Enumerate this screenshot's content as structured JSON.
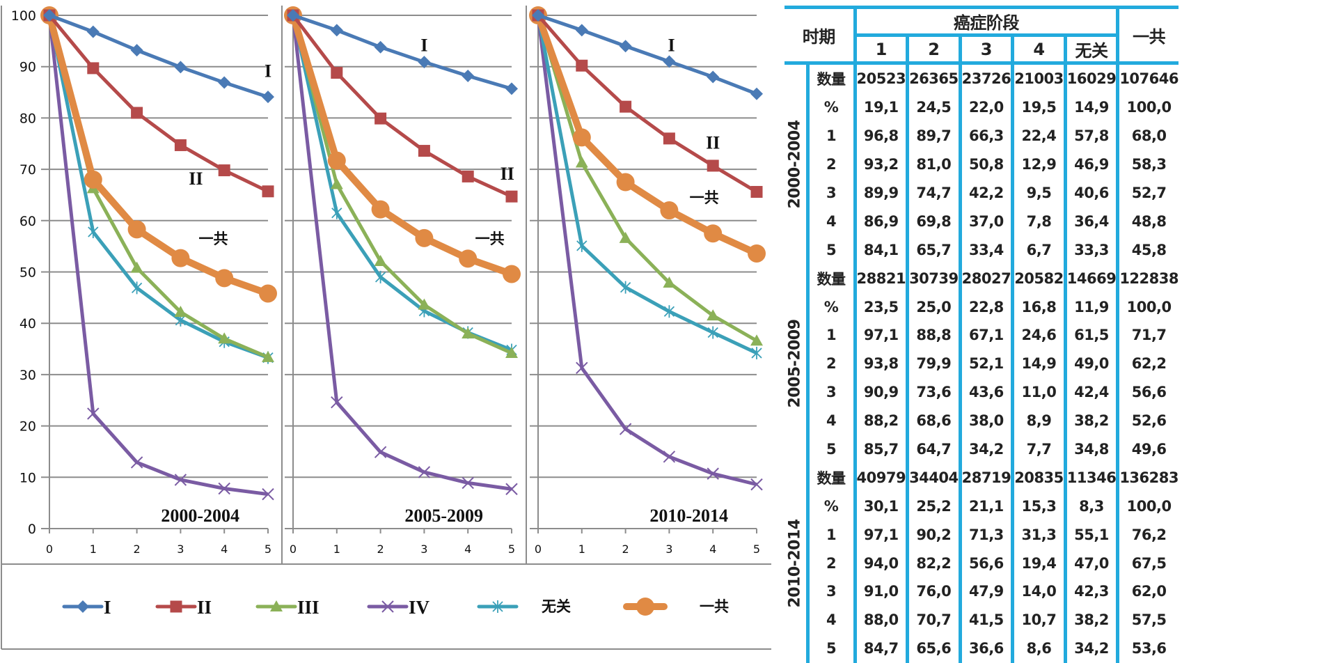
{
  "chart_data": {
    "type": "line",
    "x": [
      0,
      1,
      2,
      3,
      4,
      5
    ],
    "ylim": [
      0,
      100
    ],
    "yticks": [
      0,
      10,
      20,
      30,
      40,
      50,
      60,
      70,
      80,
      90,
      100
    ],
    "xticks": [
      0,
      1,
      2,
      3,
      4,
      5
    ],
    "grid": true,
    "legend_placement": "bottom",
    "legend": [
      {
        "label": "I",
        "color": "#4a7ab5",
        "marker": "diamond"
      },
      {
        "label": "II",
        "color": "#b54a4a",
        "marker": "square"
      },
      {
        "label": "III",
        "color": "#8bb158",
        "marker": "triangle"
      },
      {
        "label": "IV",
        "color": "#7a5ba3",
        "marker": "x"
      },
      {
        "label": "无关",
        "color": "#3ba0b8",
        "marker": "asterisk"
      },
      {
        "label": "一共",
        "color": "#e08a44",
        "marker": "circle"
      }
    ],
    "panels": [
      {
        "title": "2000-2004",
        "series": [
          {
            "name": "I",
            "values": [
              100,
              96.8,
              93.2,
              89.9,
              86.9,
              84.1
            ]
          },
          {
            "name": "II",
            "values": [
              100,
              89.7,
              81.0,
              74.7,
              69.8,
              65.7
            ]
          },
          {
            "name": "III",
            "values": [
              100,
              66.3,
              50.8,
              42.2,
              37.0,
              33.4
            ]
          },
          {
            "name": "IV",
            "values": [
              100,
              22.4,
              12.9,
              9.5,
              7.8,
              6.7
            ]
          },
          {
            "name": "无关",
            "values": [
              100,
              57.8,
              46.9,
              40.6,
              36.4,
              33.3
            ]
          },
          {
            "name": "一共",
            "values": [
              100,
              68.0,
              58.3,
              52.7,
              48.8,
              45.8
            ]
          }
        ],
        "annotations": [
          {
            "text": "I",
            "x": 5,
            "y": 88
          },
          {
            "text": "II",
            "x": 3.35,
            "y": 67
          },
          {
            "text": "一共",
            "x": 3.75,
            "y": 55.5
          }
        ]
      },
      {
        "title": "2005-2009",
        "series": [
          {
            "name": "I",
            "values": [
              100,
              97.1,
              93.8,
              90.9,
              88.2,
              85.7
            ]
          },
          {
            "name": "II",
            "values": [
              100,
              88.8,
              79.9,
              73.6,
              68.6,
              64.7
            ]
          },
          {
            "name": "III",
            "values": [
              100,
              67.1,
              52.1,
              43.6,
              38.0,
              34.2
            ]
          },
          {
            "name": "IV",
            "values": [
              100,
              24.6,
              14.9,
              11.0,
              8.9,
              7.7
            ]
          },
          {
            "name": "无关",
            "values": [
              100,
              61.5,
              49.0,
              42.4,
              38.2,
              34.8
            ]
          },
          {
            "name": "一共",
            "values": [
              100,
              71.7,
              62.2,
              56.6,
              52.6,
              49.6
            ]
          }
        ],
        "annotations": [
          {
            "text": "I",
            "x": 3,
            "y": 93
          },
          {
            "text": "II",
            "x": 4.9,
            "y": 68
          },
          {
            "text": "一共",
            "x": 4.5,
            "y": 55.5
          }
        ]
      },
      {
        "title": "2010-2014",
        "series": [
          {
            "name": "I",
            "values": [
              100,
              97.1,
              94.0,
              91.0,
              88.0,
              84.7
            ]
          },
          {
            "name": "II",
            "values": [
              100,
              90.2,
              82.2,
              76.0,
              70.7,
              65.6
            ]
          },
          {
            "name": "III",
            "values": [
              100,
              71.3,
              56.6,
              47.9,
              41.5,
              36.6
            ]
          },
          {
            "name": "IV",
            "values": [
              100,
              31.3,
              19.4,
              14.0,
              10.7,
              8.6
            ]
          },
          {
            "name": "无关",
            "values": [
              100,
              55.1,
              47.0,
              42.3,
              38.2,
              34.2
            ]
          },
          {
            "name": "一共",
            "values": [
              100,
              76.2,
              67.5,
              62.0,
              57.5,
              53.6
            ]
          }
        ],
        "annotations": [
          {
            "text": "I",
            "x": 3.05,
            "y": 93
          },
          {
            "text": "II",
            "x": 4,
            "y": 74
          },
          {
            "text": "一共",
            "x": 3.8,
            "y": 63.5
          }
        ]
      }
    ]
  },
  "table": {
    "header": {
      "period": "时期",
      "stage_group": "癌症阶段",
      "stages": [
        "1",
        "2",
        "3",
        "4",
        "无关"
      ],
      "total": "一共"
    },
    "groups": [
      {
        "period": "2000-2004",
        "rows": [
          {
            "label": "数量",
            "values": [
              "20523",
              "26365",
              "23726",
              "21003",
              "16029",
              "107646"
            ]
          },
          {
            "label": "%",
            "values": [
              "19,1",
              "24,5",
              "22,0",
              "19,5",
              "14,9",
              "100,0"
            ]
          },
          {
            "label": "1",
            "values": [
              "96,8",
              "89,7",
              "66,3",
              "22,4",
              "57,8",
              "68,0"
            ]
          },
          {
            "label": "2",
            "values": [
              "93,2",
              "81,0",
              "50,8",
              "12,9",
              "46,9",
              "58,3"
            ]
          },
          {
            "label": "3",
            "values": [
              "89,9",
              "74,7",
              "42,2",
              "9,5",
              "40,6",
              "52,7"
            ]
          },
          {
            "label": "4",
            "values": [
              "86,9",
              "69,8",
              "37,0",
              "7,8",
              "36,4",
              "48,8"
            ]
          },
          {
            "label": "5",
            "values": [
              "84,1",
              "65,7",
              "33,4",
              "6,7",
              "33,3",
              "45,8"
            ]
          }
        ]
      },
      {
        "period": "2005-2009",
        "rows": [
          {
            "label": "数量",
            "values": [
              "28821",
              "30739",
              "28027",
              "20582",
              "14669",
              "122838"
            ]
          },
          {
            "label": "%",
            "values": [
              "23,5",
              "25,0",
              "22,8",
              "16,8",
              "11,9",
              "100,0"
            ]
          },
          {
            "label": "1",
            "values": [
              "97,1",
              "88,8",
              "67,1",
              "24,6",
              "61,5",
              "71,7"
            ]
          },
          {
            "label": "2",
            "values": [
              "93,8",
              "79,9",
              "52,1",
              "14,9",
              "49,0",
              "62,2"
            ]
          },
          {
            "label": "3",
            "values": [
              "90,9",
              "73,6",
              "43,6",
              "11,0",
              "42,4",
              "56,6"
            ]
          },
          {
            "label": "4",
            "values": [
              "88,2",
              "68,6",
              "38,0",
              "8,9",
              "38,2",
              "52,6"
            ]
          },
          {
            "label": "5",
            "values": [
              "85,7",
              "64,7",
              "34,2",
              "7,7",
              "34,8",
              "49,6"
            ]
          }
        ]
      },
      {
        "period": "2010-2014",
        "rows": [
          {
            "label": "数量",
            "values": [
              "40979",
              "34404",
              "28719",
              "20835",
              "11346",
              "136283"
            ]
          },
          {
            "label": "%",
            "values": [
              "30,1",
              "25,2",
              "21,1",
              "15,3",
              "8,3",
              "100,0"
            ]
          },
          {
            "label": "1",
            "values": [
              "97,1",
              "90,2",
              "71,3",
              "31,3",
              "55,1",
              "76,2"
            ]
          },
          {
            "label": "2",
            "values": [
              "94,0",
              "82,2",
              "56,6",
              "19,4",
              "47,0",
              "67,5"
            ]
          },
          {
            "label": "3",
            "values": [
              "91,0",
              "76,0",
              "47,9",
              "14,0",
              "42,3",
              "62,0"
            ]
          },
          {
            "label": "4",
            "values": [
              "88,0",
              "70,7",
              "41,5",
              "10,7",
              "38,2",
              "57,5"
            ]
          },
          {
            "label": "5",
            "values": [
              "84,7",
              "65,6",
              "36,6",
              "8,6",
              "34,2",
              "53,6"
            ]
          }
        ]
      }
    ]
  }
}
